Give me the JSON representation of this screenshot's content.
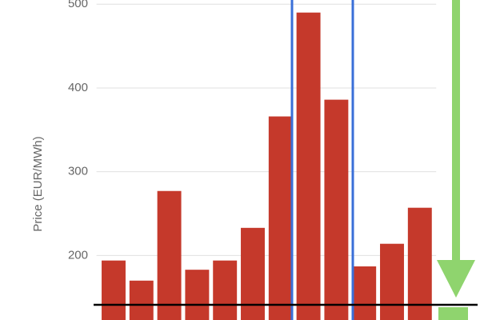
{
  "chart_data": {
    "type": "bar",
    "y_label": "Price (EUR/MWh)",
    "categories": [
      null,
      null,
      null,
      null,
      null,
      null,
      null,
      null,
      null,
      null,
      null,
      null
    ],
    "values": [
      194,
      170,
      277,
      183,
      194,
      233,
      366,
      490,
      386,
      187,
      214,
      257
    ],
    "color": "#c5392b",
    "ylim": [
      123,
      505
    ],
    "yticks": [
      200,
      300,
      400,
      500
    ],
    "grid": true
  }
}
